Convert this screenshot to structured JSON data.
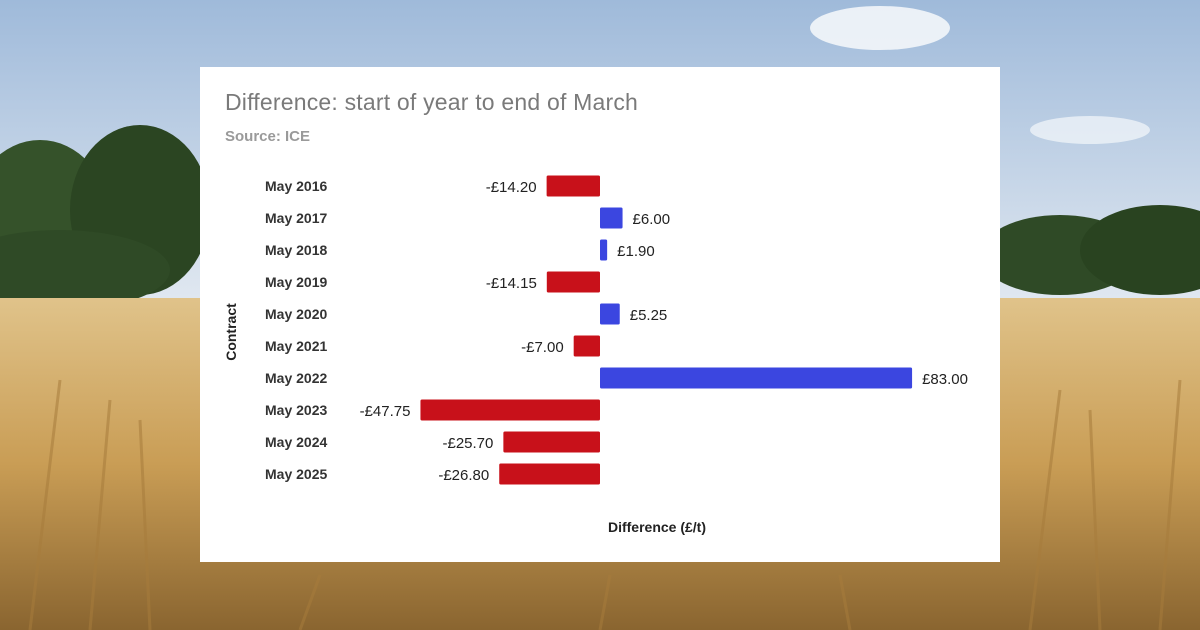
{
  "colors": {
    "positive": "#3b46e0",
    "negative": "#c8111a",
    "sky_top": "#a9c2de",
    "sky_bottom": "#dde6ef",
    "trees": "#2f4a26",
    "wheat_light": "#d9b878",
    "wheat_dark": "#8a6530"
  },
  "chart_data": {
    "type": "bar",
    "orientation": "horizontal",
    "title": "Difference: start of year to end of March",
    "subtitle": "Source: ICE",
    "xlabel": "Difference (£/t)",
    "ylabel": "Contract",
    "categories": [
      "May 2016",
      "May 2017",
      "May 2018",
      "May 2019",
      "May 2020",
      "May 2021",
      "May 2022",
      "May 2023",
      "May 2024",
      "May 2025"
    ],
    "values": [
      -14.2,
      6.0,
      1.9,
      -14.15,
      5.25,
      -7.0,
      83.0,
      -47.75,
      -25.7,
      -26.8
    ],
    "data_labels": [
      "-£14.20",
      "£6.00",
      "£1.90",
      "-£14.15",
      "£5.25",
      "-£7.00",
      "£83.00",
      "-£47.75",
      "-£25.70",
      "-£26.80"
    ],
    "xlim": [
      -50,
      90
    ],
    "grid": false,
    "legend": "none"
  }
}
